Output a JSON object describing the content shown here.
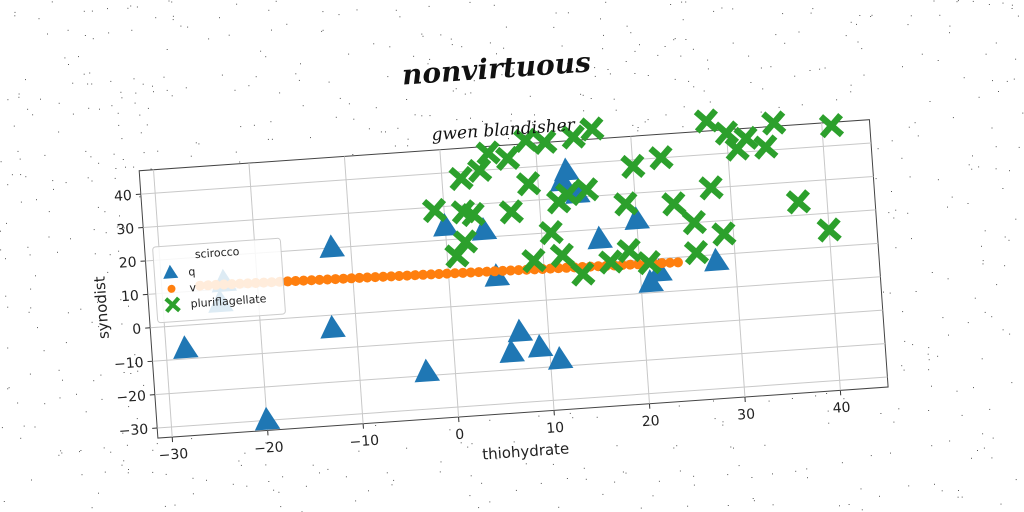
{
  "chart_data": {
    "type": "scatter",
    "title": "nonvirtuous",
    "subtitle": "gwen blandisher",
    "xlabel": "thiohydrate",
    "ylabel": "synodist",
    "xlim": [
      -31.5,
      45
    ],
    "ylim": [
      -33,
      47
    ],
    "xticks": [
      -30,
      -20,
      -10,
      0,
      10,
      20,
      30,
      40
    ],
    "yticks": [
      -30,
      -20,
      -10,
      0,
      10,
      20,
      30,
      40
    ],
    "xtick_labels": [
      "−30",
      "−20",
      "−10",
      "0",
      "10",
      "20",
      "30",
      "40"
    ],
    "ytick_labels": [
      "−30",
      "−20",
      "−10",
      "0",
      "10",
      "20",
      "30",
      "40"
    ],
    "grid": true,
    "legend": {
      "title": "scirocco",
      "placement": "center-left"
    },
    "series": [
      {
        "name": "q",
        "marker": "triangle",
        "color": "#1f77b4",
        "points": [
          [
            -23.5,
            12
          ],
          [
            -12,
            20
          ],
          [
            -28,
            -7
          ],
          [
            -24,
            6
          ],
          [
            -12.5,
            -4
          ],
          [
            -20,
            -30
          ],
          [
            -3,
            -19
          ],
          [
            0,
            24
          ],
          [
            4,
            22
          ],
          [
            5,
            8
          ],
          [
            7,
            -9
          ],
          [
            6,
            -15
          ],
          [
            9,
            -14
          ],
          [
            11,
            -18
          ],
          [
            12.5,
            35
          ],
          [
            13,
            38
          ],
          [
            16,
            17
          ],
          [
            20,
            22
          ],
          [
            22,
            6
          ],
          [
            21,
            3
          ],
          [
            28,
            8
          ],
          [
            14,
            31
          ]
        ]
      },
      {
        "name": "v",
        "marker": "circle",
        "color": "#ff7f0e",
        "x_range": [
          -26,
          24
        ],
        "y_range": [
          11.5,
          8.5
        ],
        "point_count": 61
      },
      {
        "name": "pluriflagellate",
        "marker": "x",
        "color": "#2ca02c",
        "points": [
          [
            -1,
            29
          ],
          [
            2,
            38
          ],
          [
            4,
            40
          ],
          [
            3,
            27
          ],
          [
            2,
            28
          ],
          [
            5,
            45
          ],
          [
            7,
            43
          ],
          [
            9,
            48
          ],
          [
            11,
            47
          ],
          [
            14,
            48
          ],
          [
            16,
            50
          ],
          [
            9,
            35
          ],
          [
            7,
            27
          ],
          [
            12,
            29
          ],
          [
            11,
            20
          ],
          [
            13,
            31
          ],
          [
            15,
            32
          ],
          [
            20,
            38
          ],
          [
            19,
            27
          ],
          [
            23,
            40
          ],
          [
            24,
            26
          ],
          [
            26,
            20
          ],
          [
            28,
            30
          ],
          [
            30,
            46
          ],
          [
            32,
            44
          ],
          [
            35,
            48
          ],
          [
            34,
            41
          ],
          [
            31,
            41
          ],
          [
            28,
            50
          ],
          [
            41,
            46
          ],
          [
            40,
            15
          ],
          [
            37,
            24
          ],
          [
            29,
            16
          ],
          [
            26,
            11
          ],
          [
            19,
            13
          ],
          [
            21,
            9
          ],
          [
            14,
            7
          ],
          [
            17,
            10
          ],
          [
            12,
            13
          ],
          [
            9,
            12
          ],
          [
            1,
            15
          ],
          [
            2,
            19
          ]
        ]
      }
    ]
  }
}
